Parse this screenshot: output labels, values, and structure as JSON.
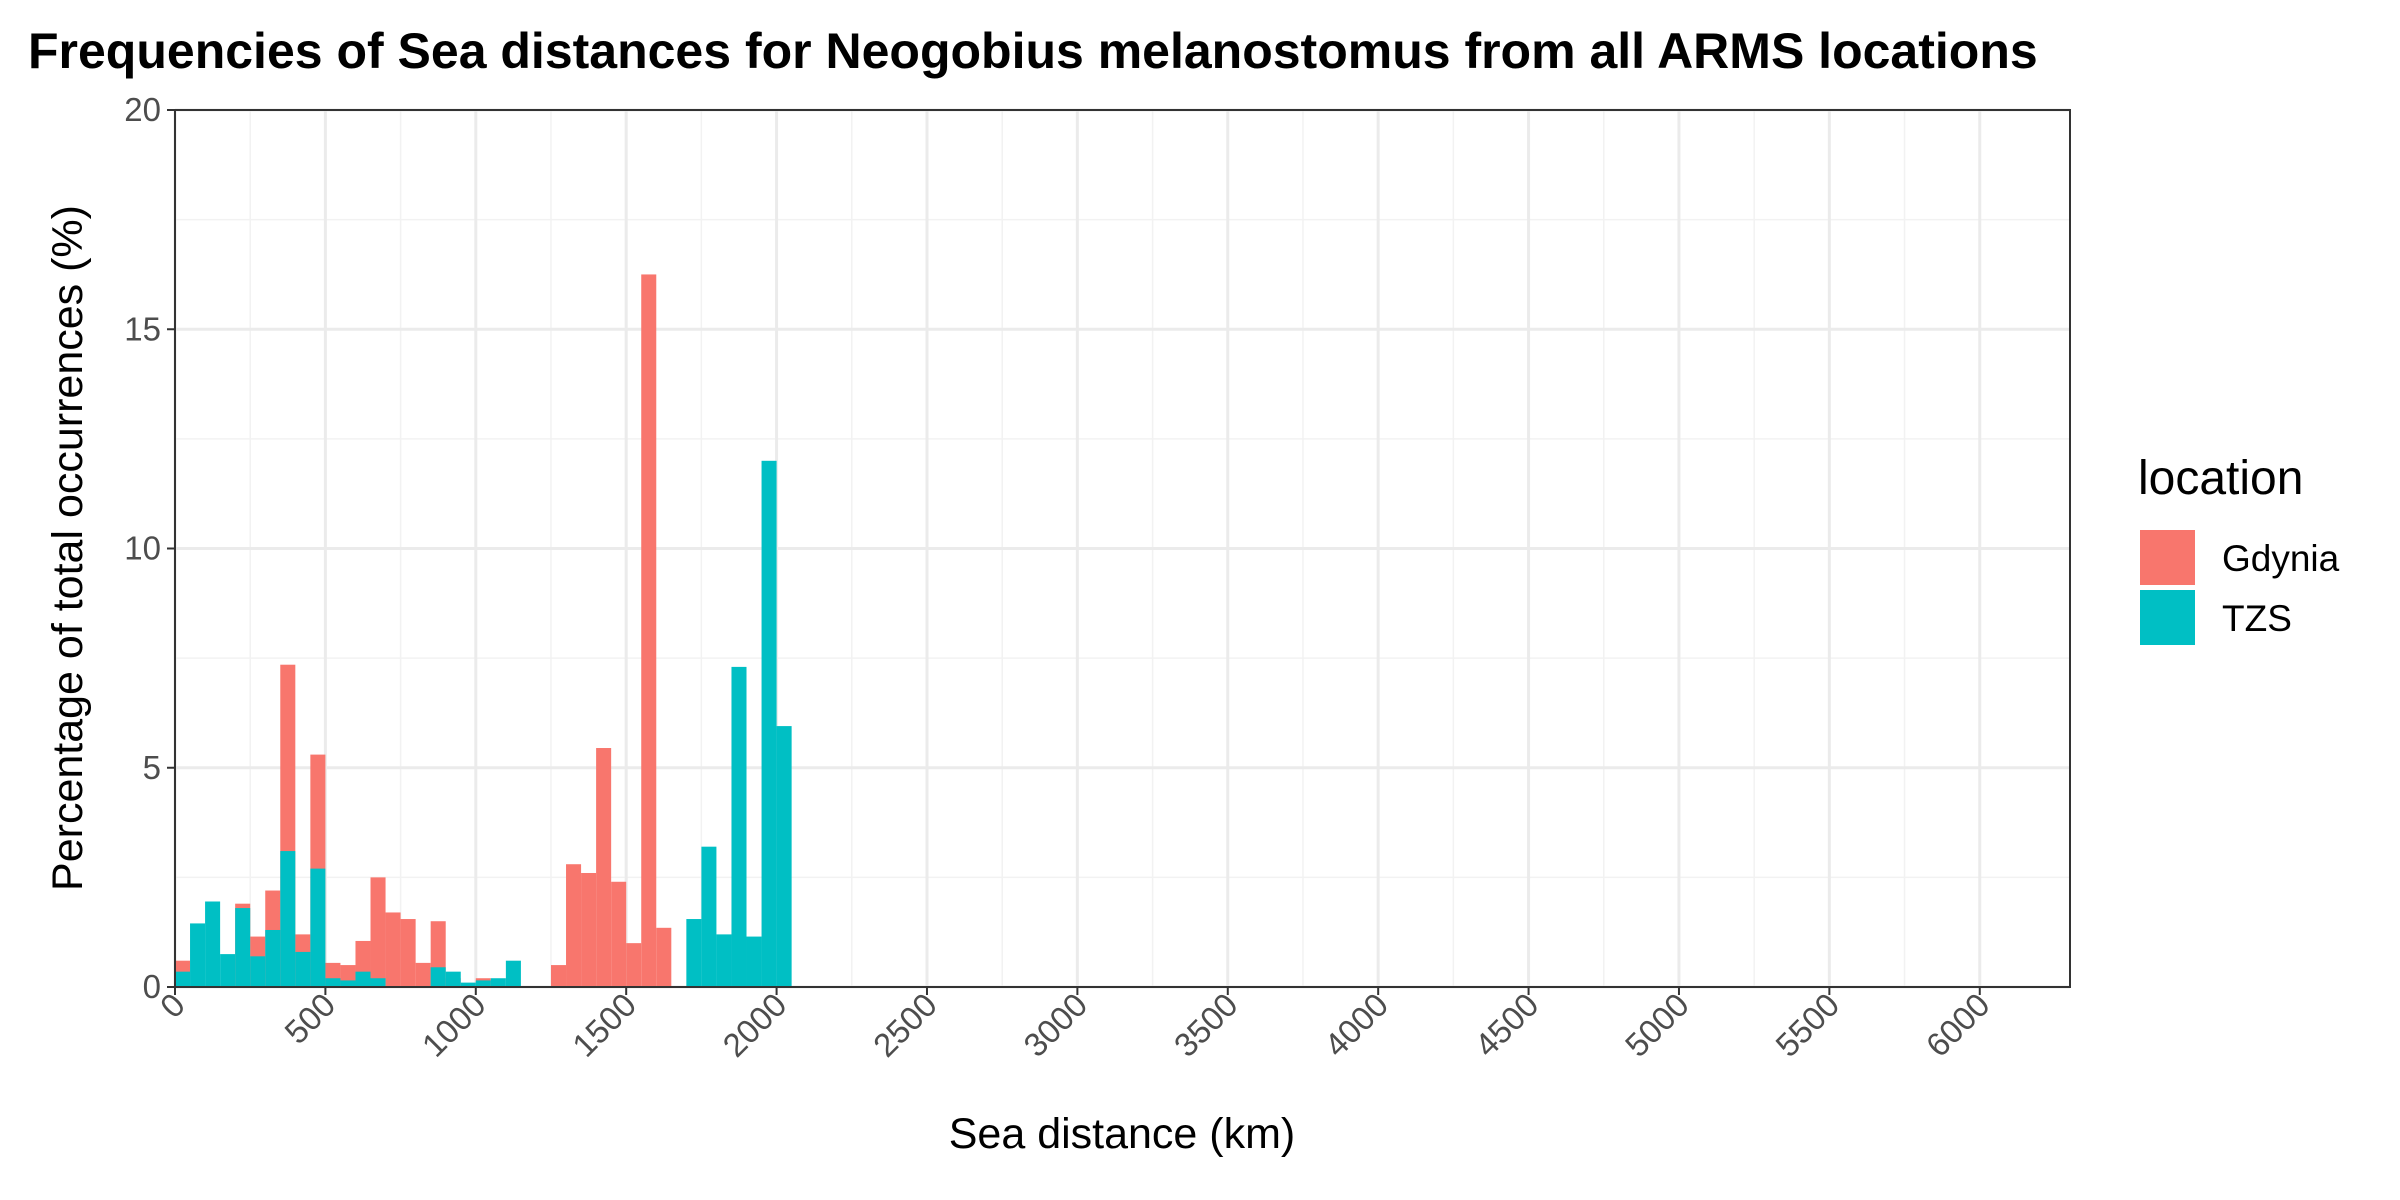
{
  "chart_data": {
    "type": "bar",
    "title": "Frequencies of Sea distances for Neogobius melanostomus from all ARMS locations",
    "xlabel": "Sea distance (km)",
    "ylabel": "Percentage of total occurrences (%)",
    "xlim": [
      0,
      6300
    ],
    "ylim": [
      0,
      20
    ],
    "bin_width": 50,
    "x_ticks": [
      0,
      500,
      1000,
      1500,
      2000,
      2500,
      3000,
      3500,
      4000,
      4500,
      5000,
      5500,
      6000
    ],
    "x_tick_labels": [
      "0",
      "500",
      "1000",
      "1500",
      "2000",
      "2500",
      "3000",
      "3500",
      "4000",
      "4500",
      "5000",
      "5500",
      "6000"
    ],
    "y_ticks": [
      0,
      5,
      10,
      15,
      20
    ],
    "y_tick_labels": [
      "0",
      "5",
      "10",
      "15",
      "20"
    ],
    "grid": true,
    "stacked": false,
    "legend": {
      "title": "location",
      "position": "right"
    },
    "series": [
      {
        "name": "Gdynia",
        "color": "#F8766D",
        "bins": [
          {
            "x": 25,
            "value": 0.6
          },
          {
            "x": 225,
            "value": 1.9
          },
          {
            "x": 275,
            "value": 1.15
          },
          {
            "x": 325,
            "value": 2.2
          },
          {
            "x": 375,
            "value": 7.35
          },
          {
            "x": 425,
            "value": 1.2
          },
          {
            "x": 475,
            "value": 5.3
          },
          {
            "x": 525,
            "value": 0.55
          },
          {
            "x": 575,
            "value": 0.5
          },
          {
            "x": 625,
            "value": 1.05
          },
          {
            "x": 675,
            "value": 2.5
          },
          {
            "x": 725,
            "value": 1.7
          },
          {
            "x": 775,
            "value": 1.55
          },
          {
            "x": 825,
            "value": 0.55
          },
          {
            "x": 875,
            "value": 1.5
          },
          {
            "x": 925,
            "value": 0.2
          },
          {
            "x": 1025,
            "value": 0.2
          },
          {
            "x": 1275,
            "value": 0.5
          },
          {
            "x": 1325,
            "value": 2.8
          },
          {
            "x": 1375,
            "value": 2.6
          },
          {
            "x": 1425,
            "value": 5.45
          },
          {
            "x": 1475,
            "value": 2.4
          },
          {
            "x": 1525,
            "value": 1.0
          },
          {
            "x": 1575,
            "value": 16.25
          },
          {
            "x": 1625,
            "value": 1.35
          }
        ]
      },
      {
        "name": "TZS",
        "color": "#00BFC4",
        "bins": [
          {
            "x": 25,
            "value": 0.35
          },
          {
            "x": 75,
            "value": 1.45
          },
          {
            "x": 125,
            "value": 1.95
          },
          {
            "x": 175,
            "value": 0.75
          },
          {
            "x": 225,
            "value": 1.8
          },
          {
            "x": 275,
            "value": 0.7
          },
          {
            "x": 325,
            "value": 1.3
          },
          {
            "x": 375,
            "value": 3.1
          },
          {
            "x": 425,
            "value": 0.8
          },
          {
            "x": 475,
            "value": 2.7
          },
          {
            "x": 525,
            "value": 0.2
          },
          {
            "x": 575,
            "value": 0.15
          },
          {
            "x": 625,
            "value": 0.35
          },
          {
            "x": 675,
            "value": 0.2
          },
          {
            "x": 875,
            "value": 0.45
          },
          {
            "x": 925,
            "value": 0.35
          },
          {
            "x": 975,
            "value": 0.1
          },
          {
            "x": 1025,
            "value": 0.15
          },
          {
            "x": 1075,
            "value": 0.2
          },
          {
            "x": 1125,
            "value": 0.6
          },
          {
            "x": 1725,
            "value": 1.55
          },
          {
            "x": 1775,
            "value": 3.2
          },
          {
            "x": 1825,
            "value": 1.2
          },
          {
            "x": 1875,
            "value": 7.3
          },
          {
            "x": 1925,
            "value": 1.15
          },
          {
            "x": 1975,
            "value": 12.0
          },
          {
            "x": 2025,
            "value": 5.95
          }
        ]
      }
    ]
  }
}
